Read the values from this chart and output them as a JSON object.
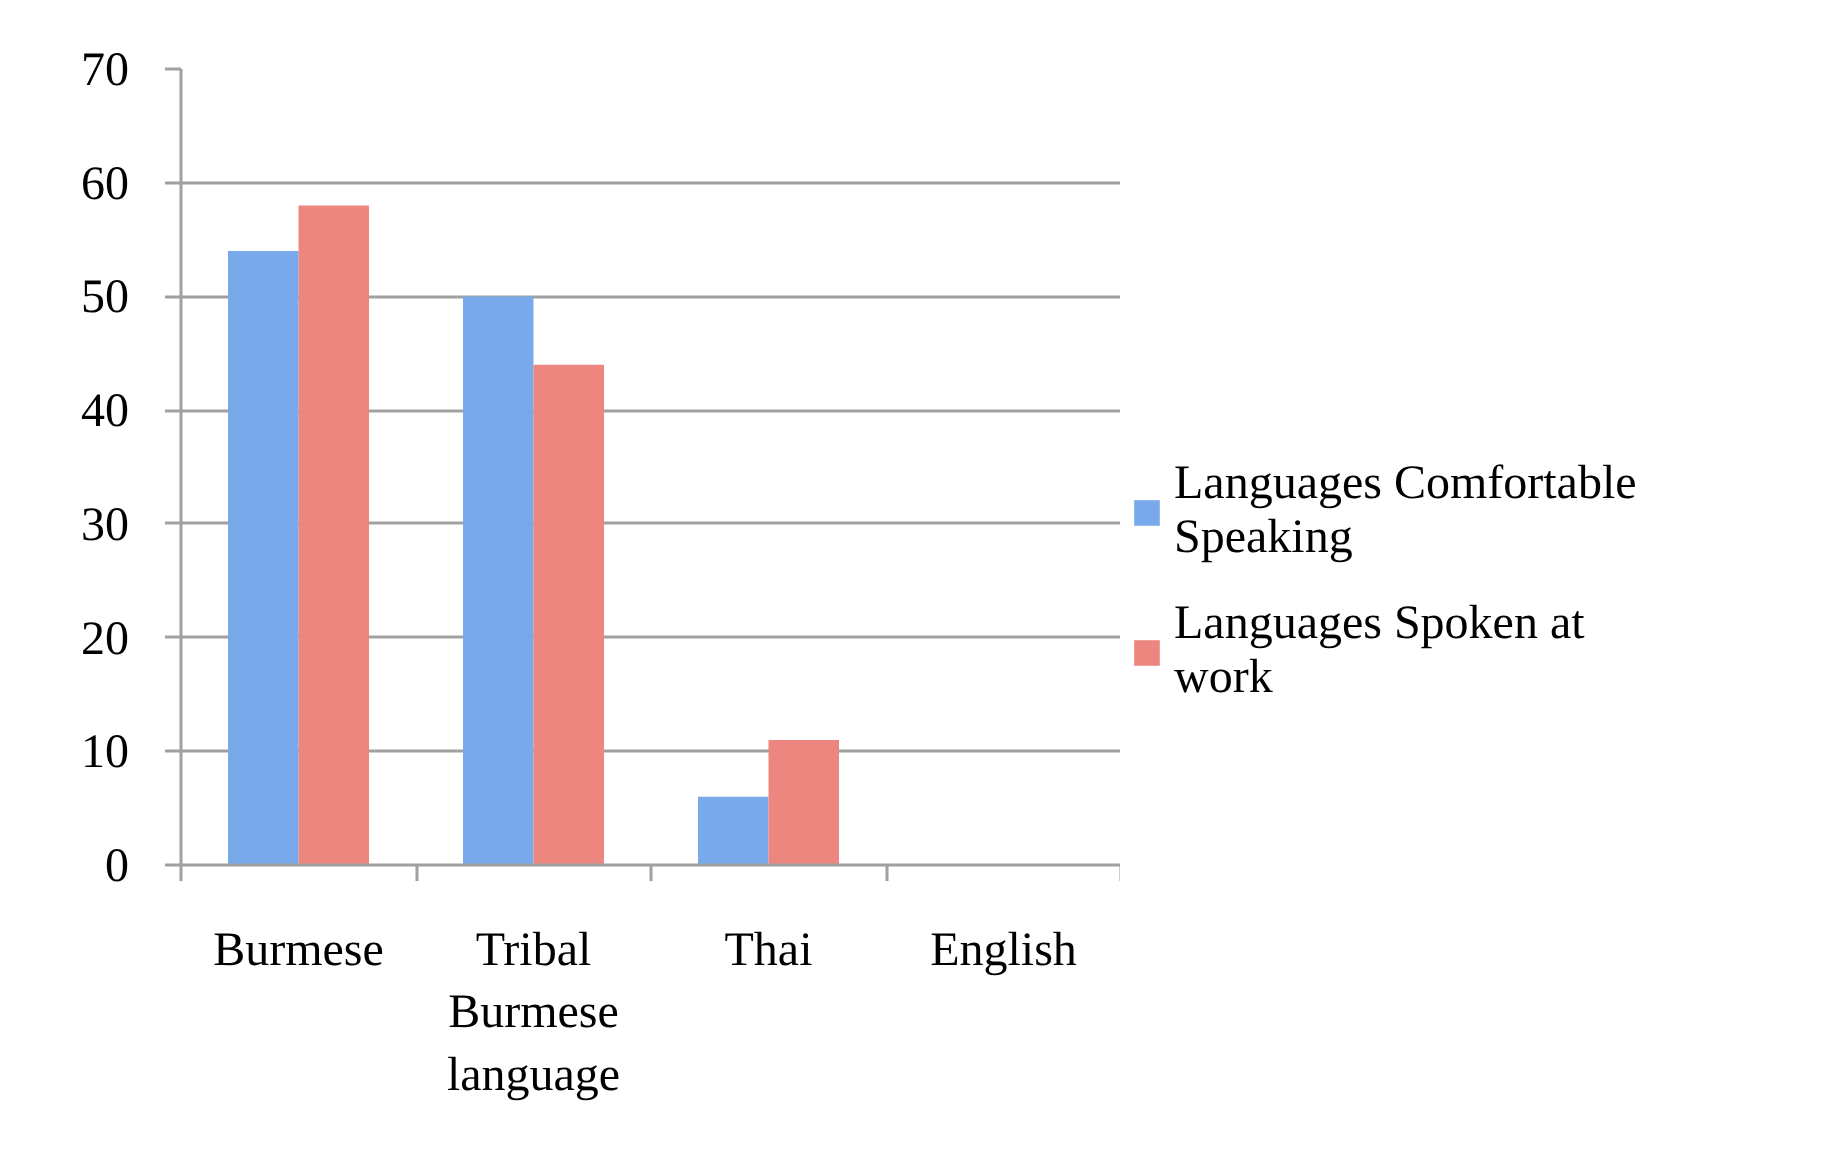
{
  "chart_data": {
    "type": "bar",
    "categories": [
      "Burmese",
      "Tribal Burmese language",
      "Thai",
      "English"
    ],
    "series": [
      {
        "name": "Languages Comfortable Speaking",
        "color": "#78aaeb",
        "values": [
          54,
          50,
          6,
          0
        ]
      },
      {
        "name": "Languages Spoken at work",
        "color": "#ee8680",
        "values": [
          58,
          44,
          11,
          0
        ]
      }
    ],
    "ylim": [
      0,
      70
    ],
    "yticks": [
      0,
      10,
      20,
      30,
      40,
      50,
      60,
      70
    ],
    "grid": "y",
    "legend": "right"
  }
}
